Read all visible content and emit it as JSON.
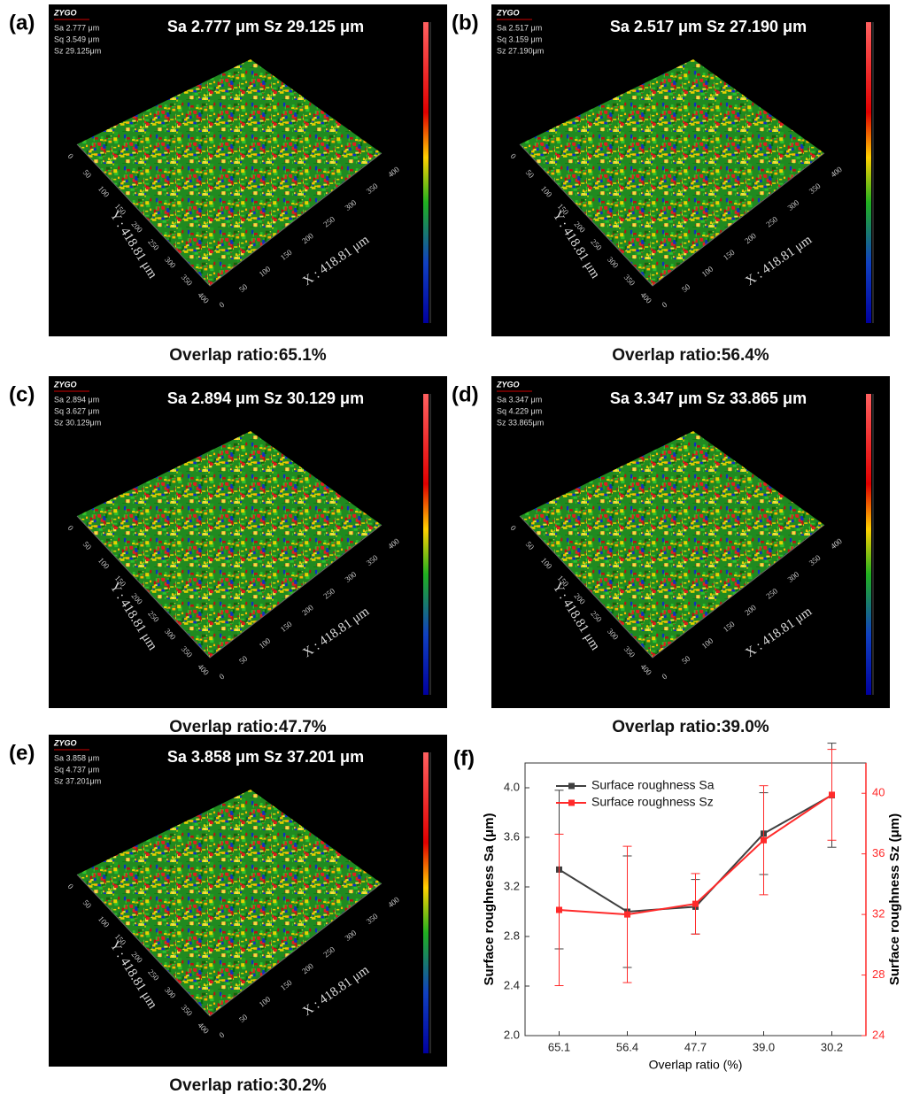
{
  "panels": [
    {
      "label": "(a)",
      "logo": "ZYGO",
      "heading": "Sa 2.777 μm Sz 29.125 μm",
      "stats": [
        "Sa 2.777  μm",
        "Sq 3.549  μm",
        "Sz 29.125μm"
      ],
      "x_axis_label": "X : 418.81 μm",
      "y_axis_label": "Y : 418.81 μm",
      "xticks": [
        0,
        50,
        100,
        150,
        200,
        250,
        300,
        350,
        400
      ],
      "yticks": [
        0,
        50,
        100,
        150,
        200,
        250,
        300,
        350,
        400
      ],
      "caption": "Overlap ratio:65.1%"
    },
    {
      "label": "(b)",
      "logo": "ZYGO",
      "heading": "Sa 2.517 μm Sz 27.190 μm",
      "stats": [
        "Sa 2.517  μm",
        "Sq 3.159  μm",
        "Sz 27.190μm"
      ],
      "x_axis_label": "X : 418.81 μm",
      "y_axis_label": "Y : 418.81 μm",
      "xticks": [
        0,
        50,
        100,
        150,
        200,
        250,
        300,
        350,
        400
      ],
      "yticks": [
        0,
        50,
        100,
        150,
        200,
        250,
        300,
        350,
        400
      ],
      "caption": "Overlap ratio:56.4%"
    },
    {
      "label": "(c)",
      "logo": "ZYGO",
      "heading": "Sa 2.894 μm Sz 30.129 μm",
      "stats": [
        "Sa 2.894  μm",
        "Sq 3.627  μm",
        "Sz 30.129μm"
      ],
      "x_axis_label": "X : 418.81 μm",
      "y_axis_label": "Y : 418.81 μm",
      "xticks": [
        0,
        50,
        100,
        150,
        200,
        250,
        300,
        350,
        400
      ],
      "yticks": [
        0,
        50,
        100,
        150,
        200,
        250,
        300,
        350,
        400
      ],
      "caption": "Overlap ratio:47.7%"
    },
    {
      "label": "(d)",
      "logo": "ZYGO",
      "heading": "Sa 3.347 μm Sz 33.865 μm",
      "stats": [
        "Sa 3.347  μm",
        "Sq 4.229  μm",
        "Sz 33.865μm"
      ],
      "x_axis_label": "X : 418.81 μm",
      "y_axis_label": "Y : 418.81 μm",
      "xticks": [
        0,
        50,
        100,
        150,
        200,
        250,
        300,
        350,
        400
      ],
      "yticks": [
        0,
        50,
        100,
        150,
        200,
        250,
        300,
        350,
        400
      ],
      "caption": "Overlap ratio:39.0%"
    },
    {
      "label": "(e)",
      "logo": "ZYGO",
      "heading": "Sa 3.858 μm Sz 37.201 μm",
      "stats": [
        "Sa 3.858  μm",
        "Sq 4.737  μm",
        "Sz 37.201μm"
      ],
      "x_axis_label": "X : 418.81 μm",
      "y_axis_label": "Y : 418.81 μm",
      "xticks": [
        0,
        50,
        100,
        150,
        200,
        250,
        300,
        350,
        400
      ],
      "yticks": [
        0,
        50,
        100,
        150,
        200,
        250,
        300,
        350,
        400
      ],
      "caption": "Overlap ratio:30.2%"
    }
  ],
  "chart_data": {
    "type": "line",
    "label": "(f)",
    "x_label": "Overlap ratio (%)",
    "y_label": "Surface roughness Sa (μm)",
    "y2_label": "Surface roughness Sz (μm)",
    "categories": [
      "65.1",
      "56.4",
      "47.7",
      "39.0",
      "30.2"
    ],
    "ylim": [
      2.0,
      4.2
    ],
    "yticks": [
      {
        "value": 2.0,
        "label": "2.0"
      },
      2.4,
      2.8,
      3.2,
      3.6,
      {
        "value": 4.0,
        "label": "4.0"
      }
    ],
    "y2lim": [
      24,
      42
    ],
    "y2ticks": [
      24,
      28,
      32,
      36,
      40
    ],
    "y2_color": "#ff2a2a",
    "legend": "upper left",
    "series": [
      {
        "name": "Surface roughness Sa",
        "color": "#404040",
        "values": [
          3.34,
          3.0,
          3.04,
          3.63,
          3.94
        ],
        "errors": [
          0.64,
          0.45,
          0.22,
          0.33,
          0.42
        ]
      },
      {
        "name": "Surface roughness Sz",
        "color": "#ff2a2a",
        "axis": "y2",
        "values": [
          32.3,
          32.0,
          32.7,
          36.9,
          39.9
        ],
        "errors": [
          5.0,
          4.5,
          2.0,
          3.6,
          3.0
        ]
      }
    ]
  }
}
